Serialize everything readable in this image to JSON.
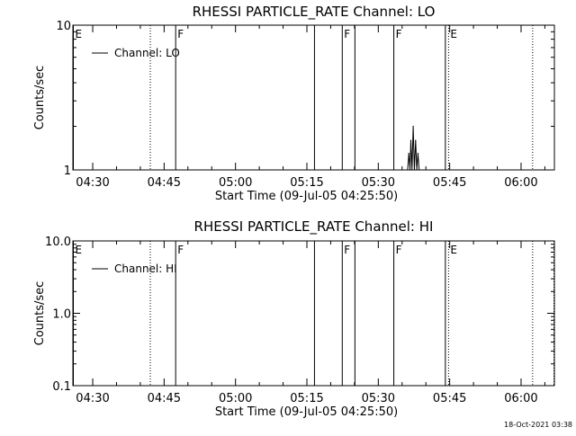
{
  "chart_data": [
    {
      "type": "line",
      "title": "RHESSI PARTICLE_RATE Channel: LO",
      "xlabel": "Start Time (09-Jul-05 04:25:50)",
      "ylabel": "Counts/sec",
      "y_scale": "log",
      "ylim": [
        1,
        10
      ],
      "yticks": [
        "1",
        "10"
      ],
      "xlim": [
        "04:25:50",
        "06:07:00"
      ],
      "xticks": [
        "04:30",
        "04:45",
        "05:00",
        "05:15",
        "05:30",
        "05:45",
        "06:00"
      ],
      "legend": {
        "placement": "top-left",
        "entries": [
          "Channel: LO"
        ]
      },
      "grid": false,
      "series": [
        {
          "name": "Channel: LO",
          "points": [
            {
              "t": "05:36:10",
              "v": 1.0
            },
            {
              "t": "05:36:25",
              "v": 1.3
            },
            {
              "t": "05:36:40",
              "v": 1.0
            },
            {
              "t": "05:36:50",
              "v": 1.6
            },
            {
              "t": "05:37:05",
              "v": 1.0
            },
            {
              "t": "05:37:20",
              "v": 2.0
            },
            {
              "t": "05:37:35",
              "v": 1.0
            },
            {
              "t": "05:37:50",
              "v": 1.6
            },
            {
              "t": "05:38:05",
              "v": 1.0
            },
            {
              "t": "05:38:20",
              "v": 1.3
            },
            {
              "t": "05:38:35",
              "v": 1.0
            }
          ]
        }
      ],
      "event_markers": [
        {
          "time": "04:25:50",
          "style": "solid",
          "flag": "E"
        },
        {
          "time": "04:42:00",
          "style": "dotted",
          "flag": ""
        },
        {
          "time": "04:47:20",
          "style": "solid",
          "flag": "F"
        },
        {
          "time": "05:16:30",
          "style": "solid",
          "flag": ""
        },
        {
          "time": "05:22:20",
          "style": "solid",
          "flag": "F"
        },
        {
          "time": "05:25:00",
          "style": "solid",
          "flag": ""
        },
        {
          "time": "05:33:10",
          "style": "solid",
          "flag": "F"
        },
        {
          "time": "05:44:00",
          "style": "solid",
          "flag": ""
        },
        {
          "time": "05:44:40",
          "style": "dotted",
          "flag": "E"
        },
        {
          "time": "06:02:20",
          "style": "dotted",
          "flag": ""
        }
      ]
    },
    {
      "type": "line",
      "title": "RHESSI PARTICLE_RATE Channel: HI",
      "xlabel": "Start Time (09-Jul-05 04:25:50)",
      "ylabel": "Counts/sec",
      "y_scale": "log",
      "ylim": [
        0.1,
        10
      ],
      "yticks": [
        "0.1",
        "1.0",
        "10.0"
      ],
      "xlim": [
        "04:25:50",
        "06:07:00"
      ],
      "xticks": [
        "04:30",
        "04:45",
        "05:00",
        "05:15",
        "05:30",
        "05:45",
        "06:00"
      ],
      "legend": {
        "placement": "top-left",
        "entries": [
          "Channel: HI"
        ]
      },
      "grid": false,
      "series": [
        {
          "name": "Channel: HI",
          "points": []
        }
      ],
      "event_markers": [
        {
          "time": "04:25:50",
          "style": "solid",
          "flag": "E"
        },
        {
          "time": "04:42:00",
          "style": "dotted",
          "flag": ""
        },
        {
          "time": "04:47:20",
          "style": "solid",
          "flag": "F"
        },
        {
          "time": "05:16:30",
          "style": "solid",
          "flag": ""
        },
        {
          "time": "05:22:20",
          "style": "solid",
          "flag": "F"
        },
        {
          "time": "05:25:00",
          "style": "solid",
          "flag": ""
        },
        {
          "time": "05:33:10",
          "style": "solid",
          "flag": "F"
        },
        {
          "time": "05:44:00",
          "style": "solid",
          "flag": ""
        },
        {
          "time": "05:44:40",
          "style": "dotted",
          "flag": "E"
        },
        {
          "time": "06:02:20",
          "style": "dotted",
          "flag": ""
        },
        {
          "time": "06:07:00",
          "style": "dotted",
          "flag": ""
        }
      ]
    }
  ],
  "footer": {
    "timestamp": "18-Oct-2021 03:38"
  }
}
